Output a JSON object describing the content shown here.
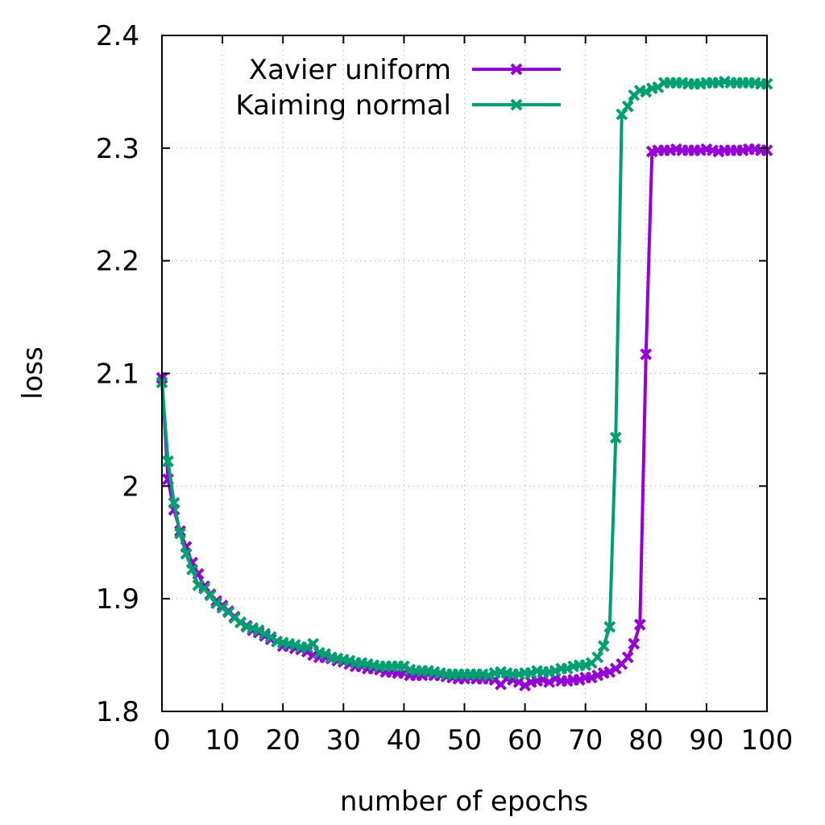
{
  "chart_data": {
    "type": "line",
    "title": "",
    "xlabel": "number of epochs",
    "ylabel": "loss",
    "xlim": [
      0,
      100
    ],
    "ylim": [
      1.8,
      2.4
    ],
    "x_ticks": [
      "0",
      "10",
      "20",
      "30",
      "40",
      "50",
      "60",
      "70",
      "80",
      "90",
      "100"
    ],
    "y_ticks": [
      "1.8",
      "1.9",
      "2",
      "2.1",
      "2.2",
      "2.3",
      "2.4"
    ],
    "grid": true,
    "legend_position": "top-left",
    "series": [
      {
        "name": "Xavier uniform",
        "color": "#9400d3",
        "marker": "x",
        "values": [
          2.096,
          2.006,
          1.979,
          1.96,
          1.946,
          1.932,
          1.922,
          1.911,
          1.904,
          1.898,
          1.894,
          1.889,
          1.884,
          1.879,
          1.876,
          1.872,
          1.87,
          1.867,
          1.864,
          1.862,
          1.858,
          1.858,
          1.856,
          1.855,
          1.853,
          1.85,
          1.848,
          1.848,
          1.847,
          1.845,
          1.844,
          1.842,
          1.84,
          1.84,
          1.838,
          1.838,
          1.837,
          1.835,
          1.835,
          1.834,
          1.834,
          1.832,
          1.832,
          1.832,
          1.833,
          1.832,
          1.832,
          1.831,
          1.83,
          1.829,
          1.829,
          1.83,
          1.829,
          1.829,
          1.829,
          1.828,
          1.824,
          1.829,
          1.828,
          1.826,
          1.823,
          1.826,
          1.827,
          1.828,
          1.826,
          1.829,
          1.827,
          1.827,
          1.828,
          1.828,
          1.83,
          1.83,
          1.832,
          1.834,
          1.835,
          1.838,
          1.842,
          1.848,
          1.86,
          1.877,
          2.117,
          2.297,
          2.298,
          2.298,
          2.298,
          2.299,
          2.298,
          2.298,
          2.298,
          2.298,
          2.299,
          2.298,
          2.297,
          2.298,
          2.298,
          2.298,
          2.298,
          2.299,
          2.299,
          2.298,
          2.298
        ]
      },
      {
        "name": "Kaiming normal",
        "color": "#009e73",
        "marker": "x",
        "values": [
          2.092,
          2.022,
          1.985,
          1.958,
          1.94,
          1.926,
          1.912,
          1.909,
          1.903,
          1.896,
          1.892,
          1.888,
          1.883,
          1.879,
          1.875,
          1.874,
          1.872,
          1.869,
          1.866,
          1.862,
          1.861,
          1.86,
          1.859,
          1.857,
          1.857,
          1.86,
          1.852,
          1.851,
          1.848,
          1.847,
          1.846,
          1.845,
          1.843,
          1.843,
          1.842,
          1.841,
          1.84,
          1.84,
          1.84,
          1.84,
          1.84,
          1.837,
          1.836,
          1.836,
          1.836,
          1.835,
          1.834,
          1.833,
          1.833,
          1.833,
          1.833,
          1.833,
          1.833,
          1.833,
          1.832,
          1.834,
          1.835,
          1.834,
          1.833,
          1.833,
          1.834,
          1.834,
          1.836,
          1.835,
          1.835,
          1.836,
          1.838,
          1.838,
          1.84,
          1.841,
          1.841,
          1.843,
          1.848,
          1.858,
          1.875,
          2.043,
          2.33,
          2.337,
          2.347,
          2.351,
          2.35,
          2.353,
          2.354,
          2.358,
          2.358,
          2.358,
          2.358,
          2.357,
          2.357,
          2.357,
          2.358,
          2.358,
          2.358,
          2.359,
          2.358,
          2.358,
          2.358,
          2.358,
          2.358,
          2.357,
          2.357
        ]
      }
    ]
  }
}
